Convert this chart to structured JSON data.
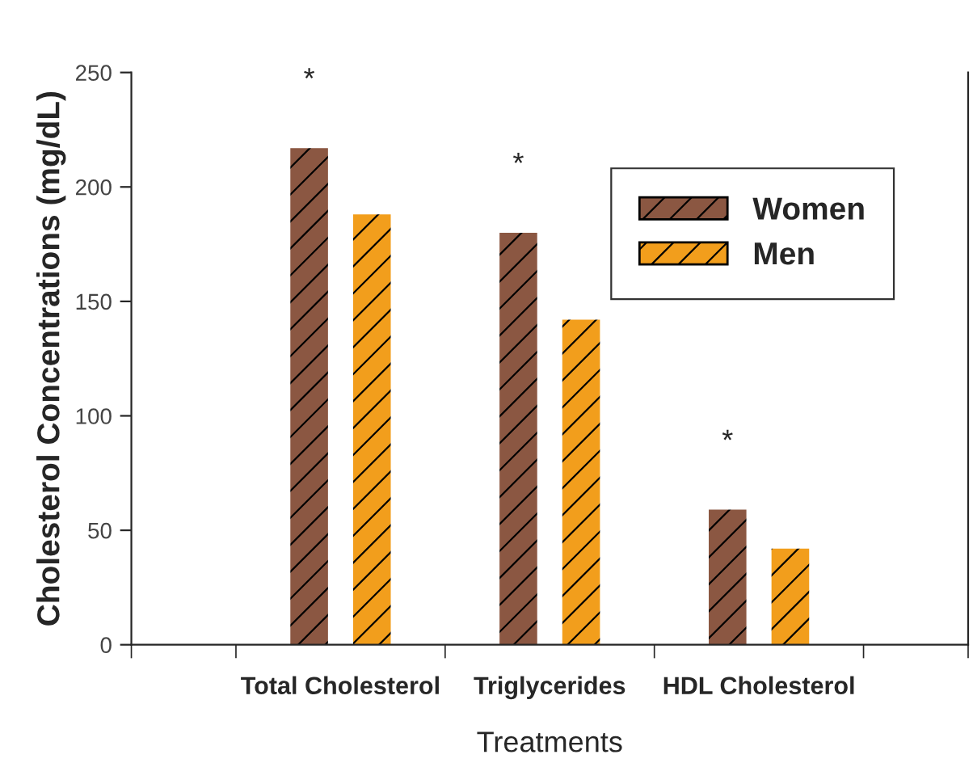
{
  "chart_data": {
    "type": "bar",
    "categories": [
      "Total Cholesterol",
      "Triglycerides",
      "HDL Cholesterol"
    ],
    "series": [
      {
        "name": "Women",
        "color": "#8b5742",
        "values": [
          217,
          180,
          59
        ]
      },
      {
        "name": "Men",
        "color": "#f29e1c",
        "values": [
          188,
          142,
          42
        ]
      }
    ],
    "xlabel": "Treatments",
    "ylabel": "Cholesterol Concentrations (mg/dL)",
    "ylim": [
      0,
      250
    ],
    "yticks": [
      0,
      50,
      100,
      150,
      200,
      250
    ],
    "annotations": [
      "*",
      "*",
      "*"
    ],
    "legend": "top right",
    "grid": false
  }
}
